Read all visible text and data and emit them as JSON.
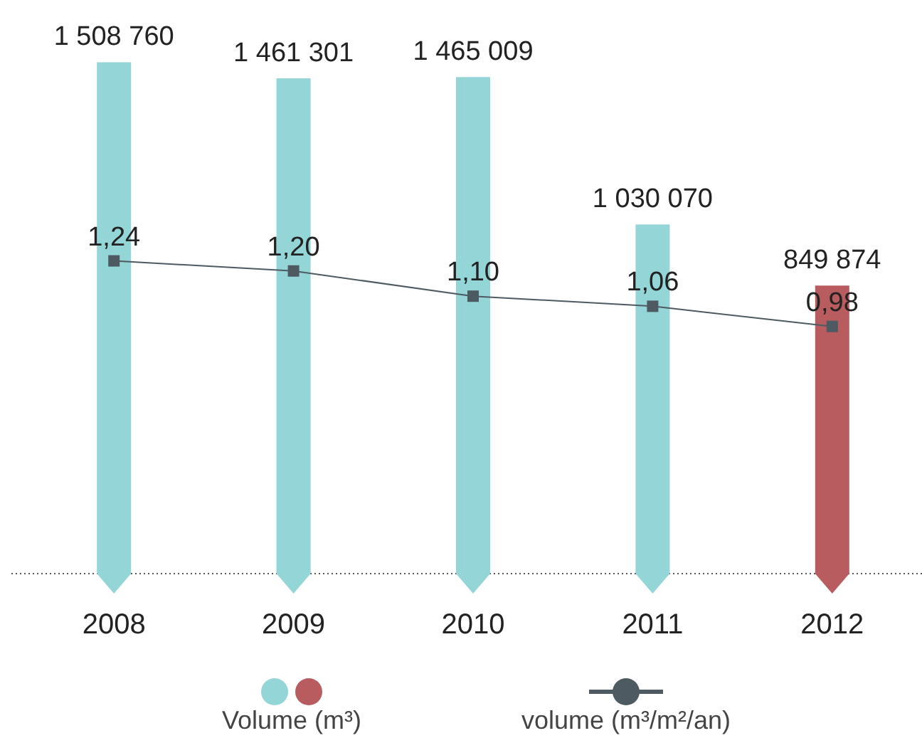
{
  "chart_data": {
    "type": "bar",
    "categories": [
      "2008",
      "2009",
      "2010",
      "2011",
      "2012"
    ],
    "legend": "bottom",
    "marker": "square",
    "series": [
      {
        "name": "Volume (m³)",
        "colors": [
          "#94d5d7",
          "#94d5d7",
          "#94d5d7",
          "#94d5d7",
          "#b85c5f"
        ],
        "values": [
          1508760,
          1461301,
          1465009,
          1030070,
          849874
        ],
        "value_labels": [
          "1 508 760",
          "1 461 301",
          "1 465 009",
          "1 030 070",
          "849 874"
        ]
      },
      {
        "name": "volume (m³/m²/an)",
        "type": "line",
        "axis": "y2",
        "color": "#4d5a62",
        "values": [
          1.24,
          1.2,
          1.1,
          1.06,
          0.98
        ],
        "value_labels": [
          "1,24",
          "1,20",
          "1,10",
          "1,06",
          "0,98"
        ]
      }
    ]
  }
}
